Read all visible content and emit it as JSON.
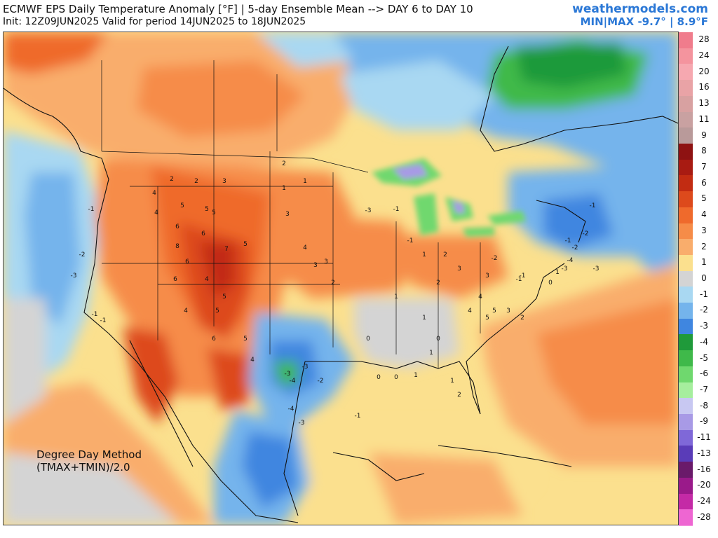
{
  "header": {
    "title": "ECMWF EPS Daily Temperature Anomaly [°F] | 5-day Ensemble Mean --> DAY 6 to DAY 10",
    "subtitle": "Init: 12Z09JUN2025 Valid for period 14JUN2025 to 18JUN2025",
    "brand": "weathermodels.com",
    "minmax": "MIN|MAX -9.7° | 8.9°F"
  },
  "method": {
    "line1": "Degree Day Method",
    "line2": "(TMAX+TMIN)/2.0"
  },
  "legend": [
    {
      "label": "28",
      "color": "#f07c8c"
    },
    {
      "label": "24",
      "color": "#f4949e"
    },
    {
      "label": "20",
      "color": "#f6a8b0"
    },
    {
      "label": "16",
      "color": "#e9a3a6"
    },
    {
      "label": "13",
      "color": "#d8a1a1"
    },
    {
      "label": "11",
      "color": "#c9a1a1"
    },
    {
      "label": "9",
      "color": "#b99a9a"
    },
    {
      "label": "8",
      "color": "#8e1212"
    },
    {
      "label": "7",
      "color": "#a81b12"
    },
    {
      "label": "6",
      "color": "#c22c12"
    },
    {
      "label": "5",
      "color": "#dd4a1c"
    },
    {
      "label": "4",
      "color": "#ef6a2c"
    },
    {
      "label": "3",
      "color": "#f68c48"
    },
    {
      "label": "2",
      "color": "#f9ad6c"
    },
    {
      "label": "1",
      "color": "#fbe08e"
    },
    {
      "label": "0",
      "color": "#d4d4d4"
    },
    {
      "label": "-1",
      "color": "#a9d8f2"
    },
    {
      "label": "-2",
      "color": "#74b4ec"
    },
    {
      "label": "-3",
      "color": "#3f86e0"
    },
    {
      "label": "-4",
      "color": "#1f9a3a"
    },
    {
      "label": "-5",
      "color": "#3fb94a"
    },
    {
      "label": "-6",
      "color": "#6fd86e"
    },
    {
      "label": "-7",
      "color": "#a6ee9e"
    },
    {
      "label": "-8",
      "color": "#c8c8f2"
    },
    {
      "label": "-9",
      "color": "#a89ae6"
    },
    {
      "label": "-11",
      "color": "#7f68d8"
    },
    {
      "label": "-13",
      "color": "#5a3cb8"
    },
    {
      "label": "-16",
      "color": "#6a1a6a"
    },
    {
      "label": "-20",
      "color": "#9a1a8a"
    },
    {
      "label": "-24",
      "color": "#c42aa6"
    },
    {
      "label": "-28",
      "color": "#ee66d2"
    }
  ],
  "map_values": [
    {
      "v": "2"
    },
    {
      "v": "2"
    },
    {
      "v": "3"
    },
    {
      "v": "4"
    },
    {
      "v": "5"
    },
    {
      "v": "5"
    },
    {
      "v": "4"
    },
    {
      "v": "6"
    },
    {
      "v": "5"
    },
    {
      "v": "6"
    },
    {
      "v": "8"
    },
    {
      "v": "7"
    },
    {
      "v": "6"
    },
    {
      "v": "5"
    },
    {
      "v": "4"
    },
    {
      "v": "3"
    },
    {
      "v": "2"
    },
    {
      "v": "1"
    },
    {
      "v": "1"
    },
    {
      "v": "3"
    },
    {
      "v": "6"
    },
    {
      "v": "4"
    },
    {
      "v": "5"
    },
    {
      "v": "5"
    },
    {
      "v": "4"
    },
    {
      "v": "6"
    },
    {
      "v": "5"
    },
    {
      "v": "4"
    },
    {
      "v": "3"
    },
    {
      "v": "2"
    },
    {
      "v": "-1"
    },
    {
      "v": "-2"
    },
    {
      "v": "-3"
    },
    {
      "v": "-1"
    },
    {
      "v": "-1"
    },
    {
      "v": "-3"
    },
    {
      "v": "-3"
    },
    {
      "v": "-4"
    },
    {
      "v": "-2"
    },
    {
      "v": "-4"
    },
    {
      "v": "-3"
    },
    {
      "v": "-1"
    },
    {
      "v": "0"
    },
    {
      "v": "0"
    },
    {
      "v": "1"
    },
    {
      "v": "-1"
    },
    {
      "v": "-3"
    },
    {
      "v": "-1"
    },
    {
      "v": "1"
    },
    {
      "v": "2"
    },
    {
      "v": "3"
    },
    {
      "v": "4"
    },
    {
      "v": "5"
    },
    {
      "v": "3"
    },
    {
      "v": "2"
    },
    {
      "v": "1"
    },
    {
      "v": "0"
    },
    {
      "v": "1"
    },
    {
      "v": "2"
    },
    {
      "v": "-1"
    },
    {
      "v": "-2"
    },
    {
      "v": "-3"
    },
    {
      "v": "-4"
    },
    {
      "v": "-2"
    },
    {
      "v": "-3"
    },
    {
      "v": "-1"
    },
    {
      "v": "-2"
    },
    {
      "v": "-1"
    },
    {
      "v": "3"
    },
    {
      "v": "5"
    },
    {
      "v": "4"
    },
    {
      "v": "2"
    },
    {
      "v": "1"
    },
    {
      "v": "0"
    },
    {
      "v": "1"
    },
    {
      "v": "-1"
    },
    {
      "v": "0"
    },
    {
      "v": "1"
    }
  ]
}
